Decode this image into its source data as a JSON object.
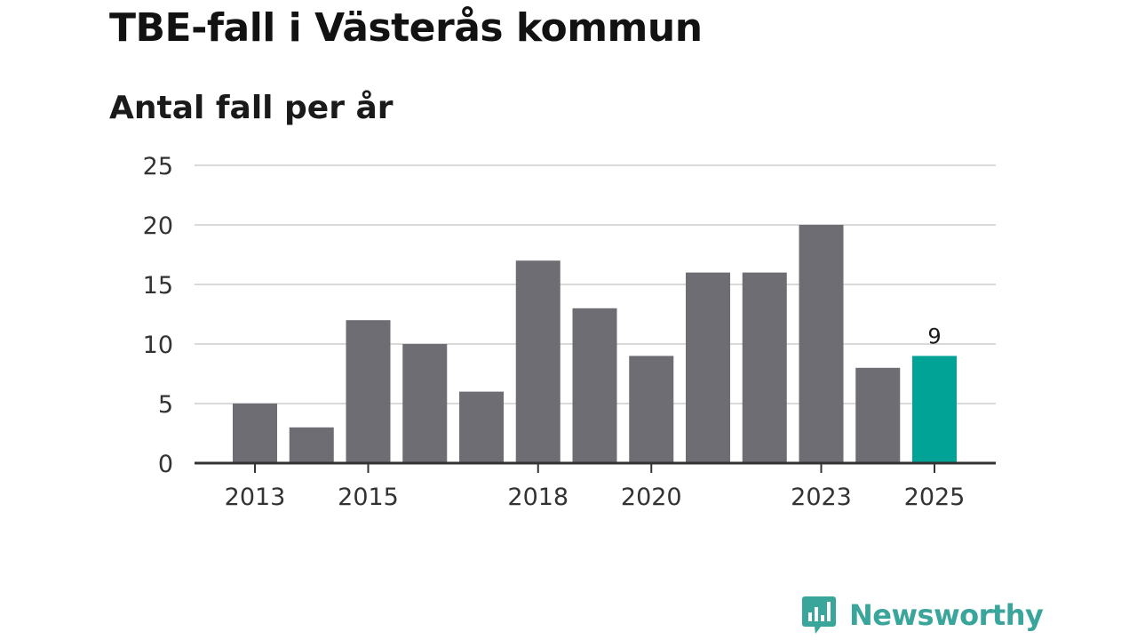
{
  "colors": {
    "bar": "#6e6d73",
    "highlight": "#00a396",
    "grid": "#d9d9d9",
    "axis": "#333333",
    "brand": "#3aa59a"
  },
  "brand": {
    "name": "Newsworthy",
    "icon": "bar-chart-speech-icon"
  },
  "chart_data": {
    "type": "bar",
    "title": "TBE-fall i Västerås kommun",
    "subtitle": "Antal fall per år",
    "xlabel": "",
    "ylabel": "",
    "ylim": [
      0,
      25
    ],
    "yticks": [
      0,
      5,
      10,
      15,
      20,
      25
    ],
    "grid": true,
    "legend": "none",
    "categories": [
      "2013",
      "2014",
      "2015",
      "2016",
      "2017",
      "2018",
      "2019",
      "2020",
      "2021",
      "2022",
      "2023",
      "2024",
      "2025"
    ],
    "values": [
      5,
      3,
      12,
      10,
      6,
      17,
      13,
      9,
      16,
      16,
      20,
      8,
      9
    ],
    "xtick_labels": [
      "2013",
      "2015",
      "2018",
      "2020",
      "2023",
      "2025"
    ],
    "highlight_category": "2025",
    "annotations": [
      {
        "category": "2025",
        "text": "9"
      }
    ]
  }
}
